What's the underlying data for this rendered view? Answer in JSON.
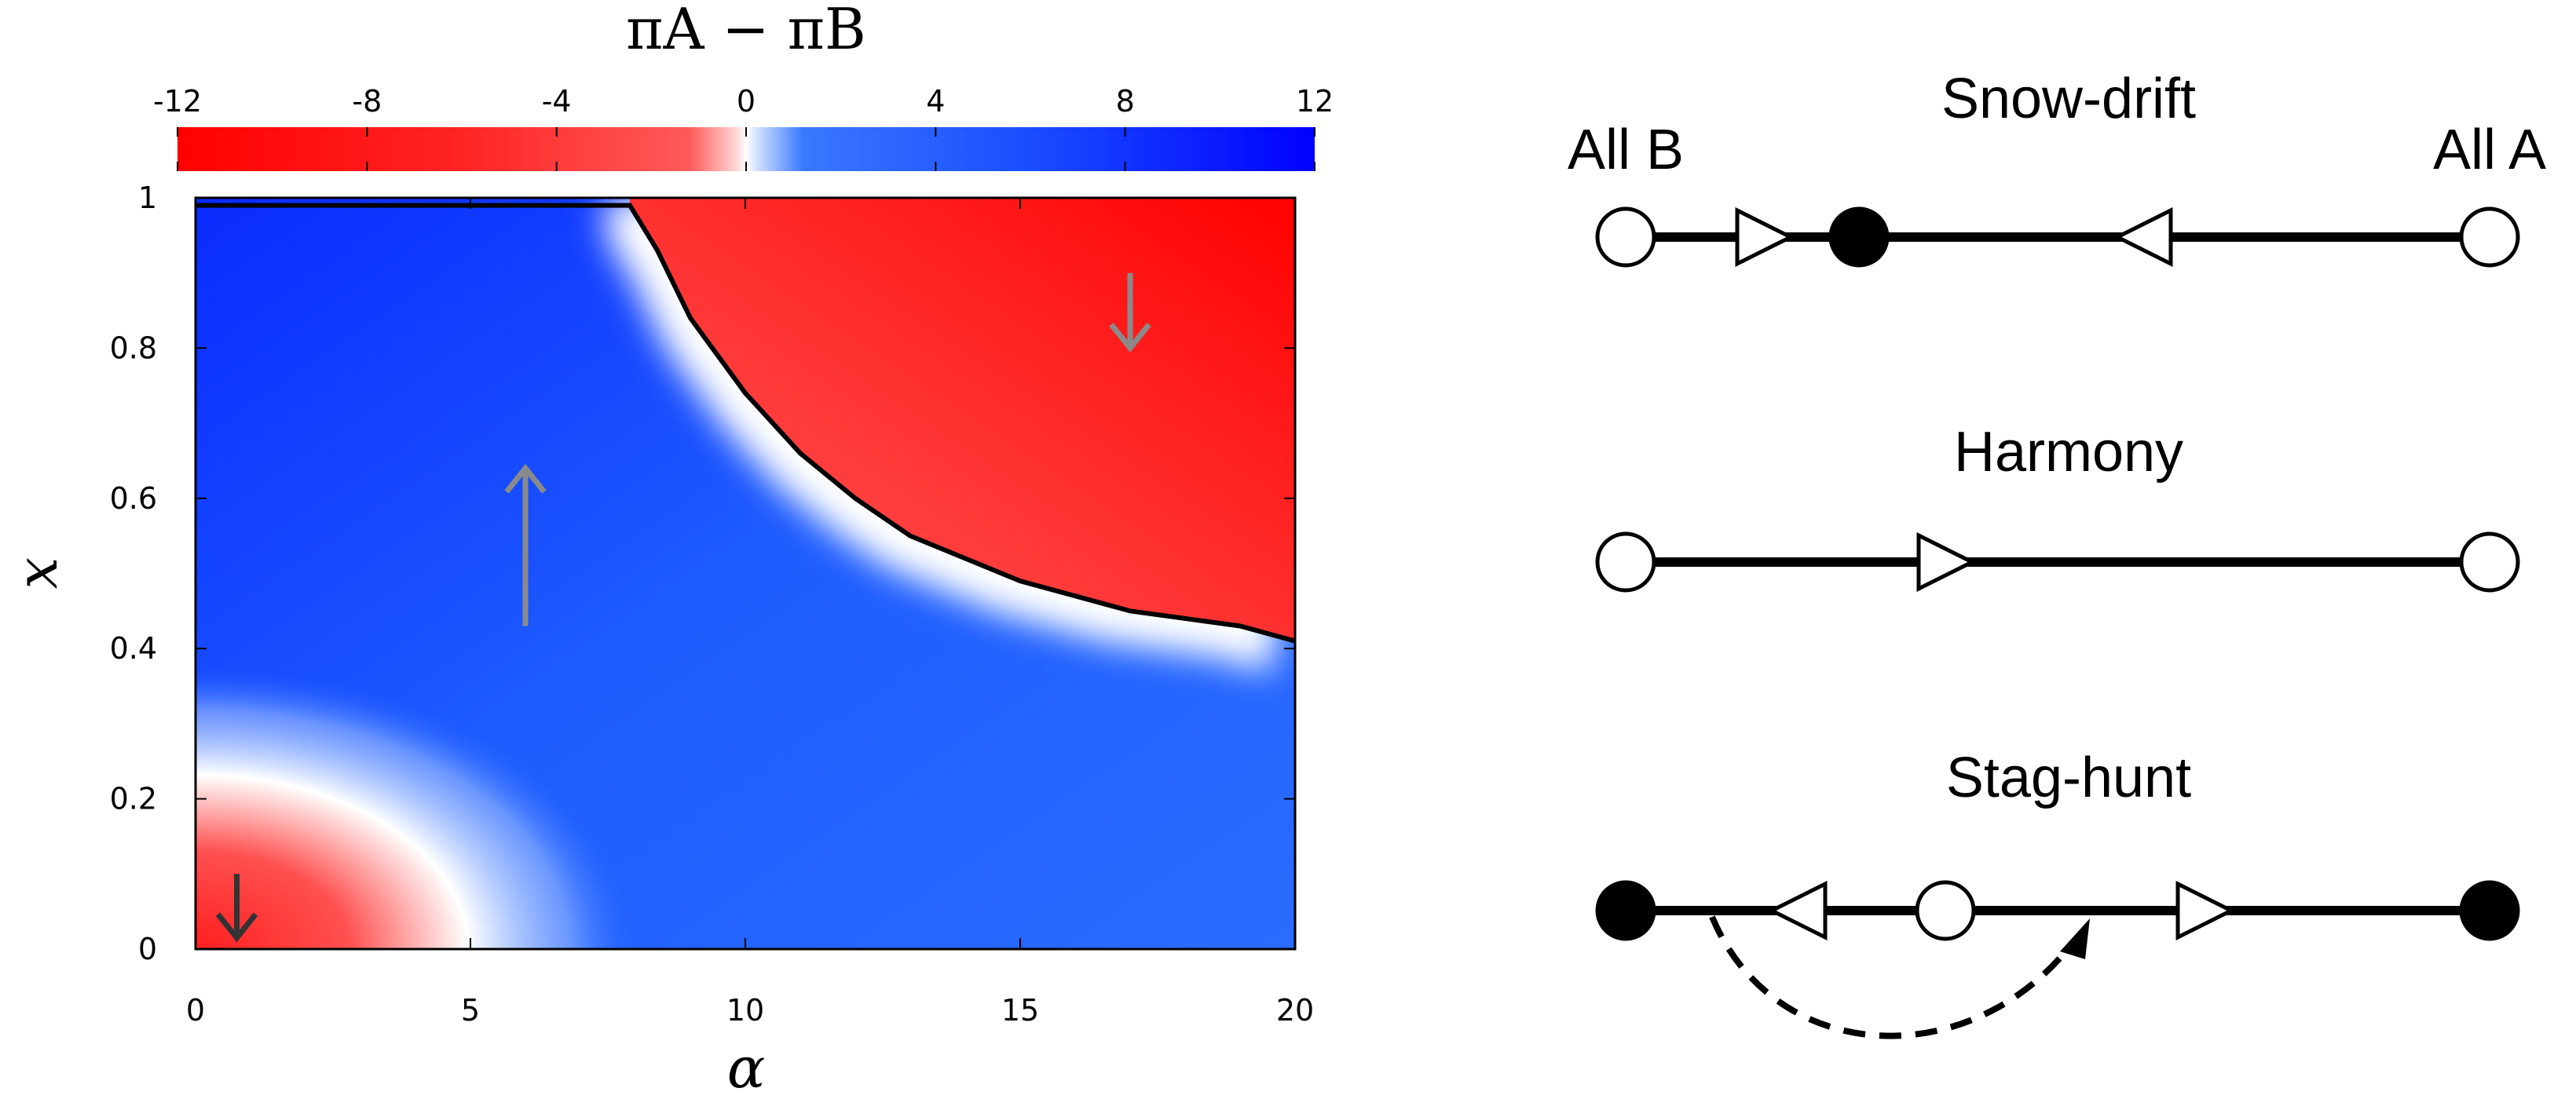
{
  "chart_data": [
    {
      "type": "heatmap",
      "title": "πA − πB",
      "xlabel": "α",
      "ylabel": "x",
      "xlim": [
        0,
        20
      ],
      "ylim": [
        0,
        1
      ],
      "x_ticks": [
        "0",
        "5",
        "10",
        "15",
        "20"
      ],
      "y_ticks": [
        "0",
        "0.2",
        "0.4",
        "0.6",
        "0.8",
        "1"
      ],
      "colorbar": {
        "range": [
          -12,
          12
        ],
        "ticks": [
          "-12",
          "-8",
          "-4",
          "0",
          "4",
          "8",
          "12"
        ],
        "colors": {
          "negative": "#ff0000",
          "zero": "#ffffff",
          "positive": "#0000ff"
        }
      },
      "boundary_curve": [
        {
          "x": 0,
          "y": 0.99
        },
        {
          "x": 7.9,
          "y": 0.99
        },
        {
          "x": 8.4,
          "y": 0.93
        },
        {
          "x": 9,
          "y": 0.84
        },
        {
          "x": 10,
          "y": 0.74
        },
        {
          "x": 11,
          "y": 0.66
        },
        {
          "x": 12,
          "y": 0.6
        },
        {
          "x": 13,
          "y": 0.55
        },
        {
          "x": 14,
          "y": 0.52
        },
        {
          "x": 15,
          "y": 0.49
        },
        {
          "x": 16,
          "y": 0.47
        },
        {
          "x": 17,
          "y": 0.45
        },
        {
          "x": 18,
          "y": 0.44
        },
        {
          "x": 19,
          "y": 0.43
        },
        {
          "x": 20,
          "y": 0.41
        }
      ],
      "arrows": [
        {
          "x": 6,
          "y_from": 0.43,
          "y_to": 0.64,
          "direction": "up",
          "color": "#8a8a8a"
        },
        {
          "x": 17,
          "y_from": 0.9,
          "y_to": 0.8,
          "direction": "down",
          "color": "#8a8a8a"
        },
        {
          "x": 0.75,
          "y_from": 0.1,
          "y_to": 0.015,
          "direction": "down",
          "color": "#333333"
        }
      ]
    },
    {
      "type": "diagram",
      "endpoint_left": "All B",
      "endpoint_right": "All A",
      "games": [
        {
          "name": "Snow-drift",
          "nodes": [
            {
              "pos": 0,
              "fill": "open"
            },
            {
              "pos": 0.27,
              "fill": "filled"
            },
            {
              "pos": 1,
              "fill": "open"
            }
          ],
          "arrows": [
            {
              "pos": 0.16,
              "dir": "right"
            },
            {
              "pos": 0.6,
              "dir": "left"
            }
          ]
        },
        {
          "name": "Harmony",
          "nodes": [
            {
              "pos": 0,
              "fill": "open"
            },
            {
              "pos": 1,
              "fill": "open"
            }
          ],
          "arrows": [
            {
              "pos": 0.37,
              "dir": "right"
            }
          ]
        },
        {
          "name": "Stag-hunt",
          "nodes": [
            {
              "pos": 0,
              "fill": "filled"
            },
            {
              "pos": 0.37,
              "fill": "open"
            },
            {
              "pos": 1,
              "fill": "filled"
            }
          ],
          "arrows": [
            {
              "pos": 0.2,
              "dir": "left"
            },
            {
              "pos": 0.67,
              "dir": "right"
            }
          ],
          "dashed_jump": {
            "from": 0.1,
            "to": 0.53
          }
        }
      ]
    }
  ]
}
